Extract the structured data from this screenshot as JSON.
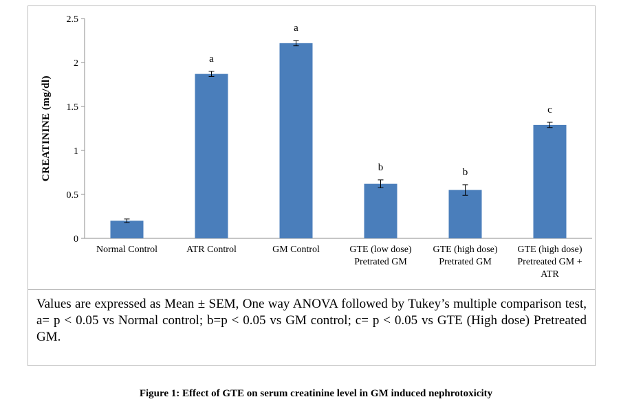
{
  "chart_data": {
    "type": "bar",
    "ylabel": "CREATININE  (mg/dl)",
    "ylim": [
      0,
      2.5
    ],
    "yticks": [
      "0",
      "0.5",
      "1",
      "1.5",
      "2",
      "2.5"
    ],
    "grid": false,
    "color": "#4a7ebb",
    "categories": [
      [
        "Normal Control"
      ],
      [
        "ATR Control"
      ],
      [
        "GM Control"
      ],
      [
        "GTE (low dose)",
        "Pretrated GM"
      ],
      [
        "GTE (high dose)",
        "Pretrated GM"
      ],
      [
        "GTE (high dose)",
        "Pretreated GM +",
        "ATR"
      ]
    ],
    "values": [
      0.2,
      1.87,
      2.22,
      0.62,
      0.55,
      1.29
    ],
    "errors": [
      0.02,
      0.03,
      0.03,
      0.045,
      0.06,
      0.03
    ],
    "significance": [
      "",
      "a",
      "a",
      "b",
      "b",
      "c"
    ]
  },
  "note": "Values are expressed as Mean ± SEM, One way ANOVA followed by Tukey’s multiple comparison test, a= p < 0.05 vs Normal control; b=p < 0.05 vs GM control; c= p < 0.05 vs GTE (High dose) Pretreated GM.",
  "caption": "Figure 1: Effect of GTE on serum creatinine level in GM induced nephrotoxicity"
}
